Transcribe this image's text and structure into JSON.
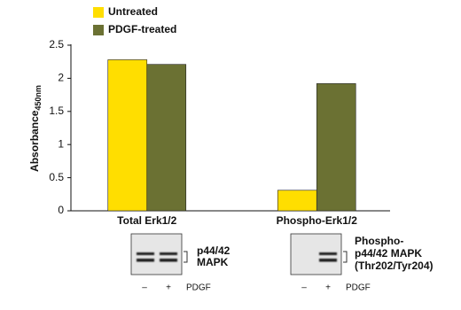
{
  "chart_data": {
    "type": "bar",
    "y_label": "Absorbance",
    "y_label_subscript": "450nm",
    "categories": [
      "Total Erk1/2",
      "Phospho-Erk1/2"
    ],
    "series": [
      {
        "name": "Untreated",
        "color": "#ffde00",
        "values": [
          2.28,
          0.31
        ]
      },
      {
        "name": "PDGF-treated",
        "color": "#6b7133",
        "values": [
          2.21,
          1.92
        ]
      }
    ],
    "ylim": [
      0,
      2.5
    ],
    "yticks": [
      0,
      0.5,
      1,
      1.5,
      2,
      2.5
    ]
  },
  "blots": [
    {
      "label_lines": [
        "p44/42",
        "MAPK"
      ],
      "lanes": [
        "–",
        "+"
      ],
      "treatment": "PDGF"
    },
    {
      "label_lines": [
        "Phospho-",
        "p44/42 MAPK",
        "(Thr202/Tyr204)"
      ],
      "lanes": [
        "–",
        "+"
      ],
      "treatment": "PDGF"
    }
  ]
}
